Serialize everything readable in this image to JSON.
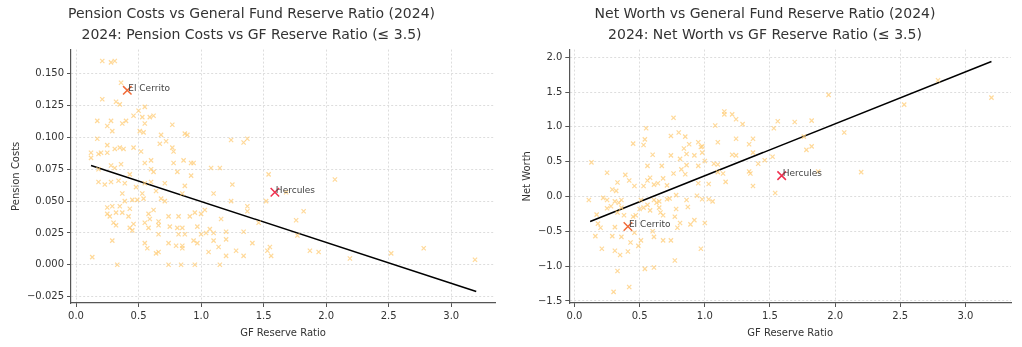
{
  "chart_data": [
    {
      "type": "scatter",
      "title": "Pension Costs vs General Fund Reserve Ratio (2024)",
      "subtitle": "2024: Pension Costs vs GF Reserve Ratio (≤ 3.5)",
      "xlabel": "GF Reserve Ratio",
      "ylabel": "Pension Costs",
      "grid": true,
      "legend": false,
      "marker": "cross",
      "xlim": [
        -0.04,
        3.35
      ],
      "ylim": [
        -0.03,
        0.169
      ],
      "xticks": [
        {
          "value": 0,
          "label": "0.0"
        },
        {
          "value": 0.5,
          "label": "0.5"
        },
        {
          "value": 1,
          "label": "1.0"
        },
        {
          "value": 1.5,
          "label": "1.5"
        },
        {
          "value": 2,
          "label": "2.0"
        },
        {
          "value": 2.5,
          "label": "2.5"
        },
        {
          "value": 3,
          "label": "3.0"
        }
      ],
      "yticks": [
        {
          "value": -0.025,
          "label": "−0.025"
        },
        {
          "value": 0,
          "label": "0.000"
        },
        {
          "value": 0.025,
          "label": "0.025"
        },
        {
          "value": 0.05,
          "label": "0.050"
        },
        {
          "value": 0.075,
          "label": "0.075"
        },
        {
          "value": 0.1,
          "label": "0.100"
        },
        {
          "value": 0.125,
          "label": "0.125"
        },
        {
          "value": 0.15,
          "label": "0.150"
        }
      ],
      "series": [
        {
          "type": "scatter",
          "color": "#ffcc77",
          "x": [
            0.21,
            0.28,
            0.31,
            0.36,
            0.21,
            0.32,
            0.35,
            0.17,
            0.28,
            0.37,
            0.4,
            0.25,
            0.29,
            0.46,
            0.5,
            0.53,
            0.55,
            0.55,
            0.51,
            0.54,
            0.59,
            0.62,
            0.77,
            0.17,
            0.12,
            0.12,
            0.18,
            0.2,
            0.25,
            0.25,
            0.31,
            0.35,
            0.38,
            0.46,
            0.52,
            0.67,
            0.68,
            0.72,
            0.77,
            0.78,
            0.87,
            0.89,
            1.24,
            1.34,
            1.37,
            0.18,
            0.28,
            0.31,
            0.36,
            0.43,
            0.55,
            0.6,
            0.6,
            0.62,
            0.78,
            0.81,
            0.86,
            0.92,
            0.94,
            0.92,
            1.08,
            1.15,
            1.54,
            2.07,
            0.18,
            0.23,
            0.28,
            0.34,
            0.39,
            0.55,
            0.6,
            0.71,
            0.87,
            1.25,
            0.48,
            0.37,
            0.53,
            0.64,
            1.1,
            1.68,
            0.39,
            0.45,
            0.49,
            0.54,
            0.68,
            0.71,
            0.85,
            1.24,
            1.52,
            0.25,
            0.29,
            0.35,
            0.43,
            1.37,
            1.37,
            1.82,
            0.25,
            0.27,
            0.32,
            0.37,
            0.42,
            0.58,
            0.62,
            0.59,
            0.66,
            0.74,
            0.82,
            0.91,
            0.95,
            1.0,
            1.03,
            0.3,
            0.32,
            0.46,
            0.55,
            0.58,
            0.66,
            0.75,
            0.81,
            0.85,
            0.97,
            1.07,
            1.16,
            1.76,
            0.43,
            0.45,
            0.66,
            0.82,
            0.87,
            1.0,
            1.04,
            1.1,
            1.2,
            1.34,
            1.46,
            1.77,
            0.29,
            0.55,
            0.57,
            0.74,
            0.8,
            0.85,
            0.85,
            0.94,
            0.97,
            1.1,
            1.14,
            1.2,
            1.41,
            1.53,
            1.55,
            0.13,
            0.64,
            0.66,
            1.06,
            1.2,
            1.28,
            1.34,
            1.56,
            1.87,
            1.94,
            2.19,
            2.52,
            2.78,
            3.19,
            0.33,
            0.74,
            0.84,
            0.95,
            1.15
          ],
          "values": [
            0.16,
            0.159,
            0.16,
            0.143,
            0.13,
            0.128,
            0.126,
            0.113,
            0.113,
            0.111,
            0.113,
            0.109,
            0.105,
            0.117,
            0.121,
            0.116,
            0.124,
            0.111,
            0.105,
            0.104,
            0.116,
            0.117,
            0.11,
            0.099,
            0.088,
            0.084,
            0.087,
            0.088,
            0.088,
            0.094,
            0.091,
            0.092,
            0.091,
            0.092,
            0.089,
            0.095,
            0.102,
            0.097,
            0.092,
            0.089,
            0.103,
            0.102,
            0.098,
            0.096,
            0.099,
            0.075,
            0.078,
            0.076,
            0.079,
            0.071,
            0.08,
            0.082,
            0.075,
            0.073,
            0.08,
            0.073,
            0.082,
            0.08,
            0.08,
            0.07,
            0.076,
            0.076,
            0.071,
            0.067,
            0.065,
            0.063,
            0.065,
            0.066,
            0.064,
            0.064,
            0.065,
            0.064,
            0.062,
            0.063,
            0.061,
            0.056,
            0.056,
            0.058,
            0.056,
            0.057,
            0.05,
            0.051,
            0.051,
            0.052,
            0.052,
            0.05,
            0.056,
            0.05,
            0.05,
            0.045,
            0.046,
            0.046,
            0.044,
            0.046,
            0.042,
            0.042,
            0.04,
            0.038,
            0.041,
            0.041,
            0.038,
            0.04,
            0.043,
            0.036,
            0.034,
            0.038,
            0.038,
            0.038,
            0.041,
            0.04,
            0.043,
            0.033,
            0.031,
            0.032,
            0.033,
            0.029,
            0.031,
            0.03,
            0.029,
            0.029,
            0.03,
            0.028,
            0.036,
            0.035,
            0.029,
            0.027,
            0.024,
            0.024,
            0.024,
            0.024,
            0.025,
            0.025,
            0.026,
            0.026,
            0.033,
            0.023,
            0.019,
            0.017,
            0.013,
            0.017,
            0.015,
            0.015,
            0.013,
            0.019,
            0.017,
            0.019,
            0.014,
            0.02,
            0.017,
            0.011,
            0.014,
            0.006,
            0.009,
            0.01,
            0.01,
            0.007,
            0.011,
            0.007,
            0.007,
            0.011,
            0.01,
            0.005,
            0.009,
            0.013,
            0.004,
            0.0,
            0.0,
            0.0,
            0.0,
            0.0
          ]
        },
        {
          "type": "scatter",
          "name": "El Cerrito",
          "color": "#f26b38",
          "x": [
            0.41
          ],
          "values": [
            0.137
          ]
        },
        {
          "type": "scatter",
          "name": "Hercules",
          "color": "#f0304f",
          "x": [
            1.59
          ],
          "values": [
            0.057
          ]
        },
        {
          "type": "line",
          "marker": "none",
          "color": "#000000",
          "x": [
            0.12,
            3.2
          ],
          "values": [
            0.078,
            -0.021
          ]
        }
      ]
    },
    {
      "type": "scatter",
      "title": "Net Worth vs General Fund Reserve Ratio (2024)",
      "subtitle": "2024: Net Worth vs GF Reserve Ratio (≤ 3.5)",
      "xlabel": "GF Reserve Ratio",
      "ylabel": "Net Worth",
      "grid": true,
      "legend": false,
      "marker": "cross",
      "xlim": [
        -0.04,
        3.35
      ],
      "ylim": [
        -1.53,
        2.11
      ],
      "xticks": [
        {
          "value": 0,
          "label": "0.0"
        },
        {
          "value": 0.5,
          "label": "0.5"
        },
        {
          "value": 1,
          "label": "1.0"
        },
        {
          "value": 1.5,
          "label": "1.5"
        },
        {
          "value": 2,
          "label": "2.0"
        },
        {
          "value": 2.5,
          "label": "2.5"
        },
        {
          "value": 3,
          "label": "3.0"
        }
      ],
      "yticks": [
        {
          "value": -1.5,
          "label": "−1.5"
        },
        {
          "value": -1,
          "label": "−1.0"
        },
        {
          "value": -0.5,
          "label": "−0.5"
        },
        {
          "value": 0,
          "label": "0.0"
        },
        {
          "value": 0.5,
          "label": "0.5"
        },
        {
          "value": 1,
          "label": "1.0"
        },
        {
          "value": 1.5,
          "label": "1.5"
        },
        {
          "value": 2,
          "label": "2.0"
        }
      ],
      "series": [
        {
          "type": "scatter",
          "color": "#ffcc77",
          "x": [
            0.13,
            0.11,
            0.25,
            0.22,
            0.25,
            0.29,
            0.33,
            0.32,
            0.31,
            0.34,
            0.36,
            0.39,
            0.42,
            0.46,
            0.25,
            0.28,
            0.33,
            0.36,
            0.38,
            0.17,
            0.18,
            0.2,
            0.16,
            0.21,
            0.29,
            0.31,
            0.31,
            0.35,
            0.33,
            0.3,
            0.42,
            0.41,
            0.43,
            0.45,
            0.47,
            0.36,
            0.46,
            0.49,
            0.45,
            0.55,
            0.54,
            0.53,
            0.56,
            0.6,
            0.53,
            0.56,
            0.58,
            0.61,
            0.64,
            0.67,
            0.68,
            0.71,
            0.76,
            0.74,
            0.74,
            0.76,
            0.8,
            0.81,
            0.82,
            0.85,
            0.84,
            0.86,
            0.88,
            0.86,
            0.85,
            0.51,
            0.5,
            0.53,
            0.56,
            0.58,
            0.61,
            0.63,
            0.65,
            0.66,
            0.68,
            0.65,
            0.71,
            0.73,
            0.78,
            0.51,
            0.54,
            0.61,
            0.6,
            0.61,
            0.68,
            0.74,
            0.77,
            0.77,
            0.78,
            0.79,
            0.81,
            0.86,
            0.87,
            0.89,
            0.92,
            0.97,
            1.0,
            0.94,
            0.98,
            1.03,
            1.06,
            0.95,
            1.03,
            0.95,
            0.92,
            0.95,
            0.97,
            0.98,
            0.98,
            1.0,
            1.08,
            1.1,
            1.1,
            1.1,
            1.07,
            1.14,
            1.16,
            1.15,
            1.15,
            1.21,
            1.24,
            1.29,
            1.24,
            1.21,
            1.24,
            1.34,
            1.37,
            1.37,
            1.34,
            1.35,
            1.37,
            1.41,
            1.46,
            1.52,
            1.53,
            1.56,
            1.54,
            1.69,
            1.76,
            1.78,
            1.82,
            1.82,
            1.87,
            1.95,
            2.07,
            2.2,
            2.53,
            2.79,
            3.2
          ],
          "values": [
            0.49,
            -0.05,
            0.34,
            -0.02,
            -0.05,
            0.1,
            0.2,
            0.08,
            -0.07,
            -0.09,
            -0.05,
            0.31,
            0.23,
            0.15,
            -0.17,
            -0.14,
            -0.23,
            -0.16,
            -0.27,
            -0.26,
            -0.39,
            -0.45,
            -0.57,
            -0.75,
            -0.57,
            -0.44,
            -0.78,
            -0.84,
            -1.07,
            -1.37,
            -1.3,
            -0.79,
            -0.66,
            -0.29,
            -0.27,
            -0.58,
            -0.52,
            -0.71,
            0.76,
            0.98,
            0.82,
            0.74,
            0.44,
            0.6,
            0.15,
            0.23,
            0.27,
            0.17,
            0.19,
            0.44,
            0.26,
            0.16,
            1.13,
            0.59,
            0.87,
            0.33,
            0.92,
            0.54,
            0.39,
            0.86,
            0.69,
            0.61,
            0.75,
            0.45,
            0.32,
            -0.05,
            -0.18,
            -0.16,
            -0.12,
            -0.2,
            -0.05,
            -0.09,
            -0.16,
            -0.23,
            -0.27,
            -0.07,
            -0.04,
            -0.03,
            0.02,
            -0.63,
            -1.04,
            -1.02,
            -0.5,
            -0.58,
            -0.63,
            -0.63,
            -0.92,
            -0.29,
            -0.18,
            -0.45,
            -0.38,
            -0.05,
            -0.15,
            -0.4,
            -0.34,
            -0.75,
            -0.38,
            0.01,
            -0.04,
            -0.04,
            -0.07,
            0.19,
            0.18,
            0.44,
            0.59,
            0.78,
            0.71,
            0.72,
            0.63,
            0.51,
            1.02,
            0.78,
            0.35,
            0.46,
            0.47,
            0.33,
            0.21,
            1.22,
            1.18,
            1.18,
            1.11,
            1.04,
            0.83,
            0.6,
            0.59,
            0.75,
            0.83,
            0.63,
            0.36,
            0.33,
            0.15,
            0.47,
            0.52,
            0.57,
            0.98,
            1.08,
            0.05,
            1.07,
            0.86,
            0.67,
            0.72,
            1.09,
            0.36,
            1.46,
            0.92,
            0.35,
            1.32,
            1.67,
            1.42
          ]
        },
        {
          "type": "scatter",
          "name": "El Cerrito",
          "color": "#f26b38",
          "x": [
            0.41
          ],
          "values": [
            -0.43
          ]
        },
        {
          "type": "scatter",
          "name": "Hercules",
          "color": "#f0304f",
          "x": [
            1.59
          ],
          "values": [
            0.3
          ]
        },
        {
          "type": "line",
          "marker": "none",
          "color": "#000000",
          "x": [
            0.12,
            3.2
          ],
          "values": [
            -0.36,
            1.94
          ]
        }
      ]
    }
  ]
}
